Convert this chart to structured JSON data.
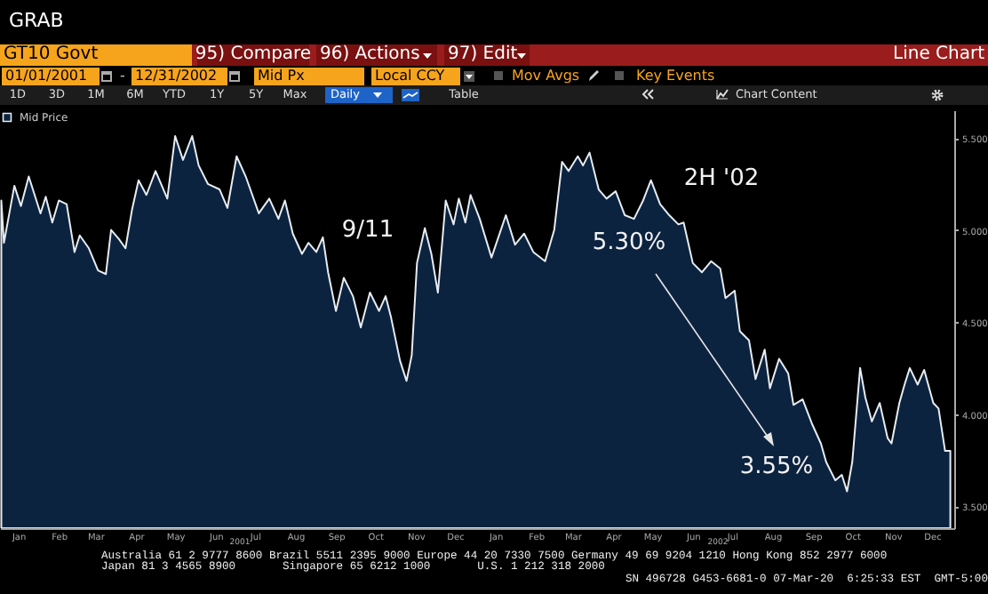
{
  "chart_data": [
    {
      "type": "other",
      "title": "GRAB",
      "annotations": [
        "GT10 Govt",
        "95) Compare",
        "96) Actions",
        "97) Edit",
        "Line Chart",
        "01/01/2001",
        "-",
        "12/31/2002",
        "Mid Px",
        "Local CCY",
        "Mov Avgs",
        "Key Events",
        "1D",
        "3D",
        "1M",
        "6M",
        "YTD",
        "1Y",
        "5Y",
        "Max",
        "Daily",
        "Table",
        "Chart Content"
      ]
    },
    {
      "type": "area",
      "legend": "top left",
      "xlim": [
        "2001-01-01",
        "2003-01-01"
      ],
      "ylim": [
        3.38,
        5.65
      ],
      "yticks": [
        {
          "value": 3.5,
          "label": "3.500"
        },
        {
          "value": 4,
          "label": "4.000"
        },
        {
          "value": 4.5,
          "label": "4.500"
        },
        {
          "value": 5,
          "label": "5.000"
        },
        {
          "value": 5.5,
          "label": "5.500"
        }
      ],
      "xticks": [
        {
          "value": "2001-01-15",
          "label": "Jan"
        },
        {
          "value": "2001-02-15",
          "label": "Feb"
        },
        {
          "value": "2001-03-15",
          "label": "Mar"
        },
        {
          "value": "2001-04-15",
          "label": "Apr"
        },
        {
          "value": "2001-05-15",
          "label": "May"
        },
        {
          "value": "2001-06-15",
          "label": "Jun"
        },
        {
          "value": "2001-07-15",
          "label": "Jul"
        },
        {
          "value": "2001-08-15",
          "label": "Aug"
        },
        {
          "value": "2001-09-15",
          "label": "Sep"
        },
        {
          "value": "2001-10-15",
          "label": "Oct"
        },
        {
          "value": "2001-11-15",
          "label": "Nov"
        },
        {
          "value": "2001-12-15",
          "label": "Dec"
        },
        {
          "value": "2002-01-15",
          "label": "Jan"
        },
        {
          "value": "2002-02-15",
          "label": "Feb"
        },
        {
          "value": "2002-03-15",
          "label": "Mar"
        },
        {
          "value": "2002-04-15",
          "label": "Apr"
        },
        {
          "value": "2002-05-15",
          "label": "May"
        },
        {
          "value": "2002-06-15",
          "label": "Jun"
        },
        {
          "value": "2002-07-15",
          "label": "Jul"
        },
        {
          "value": "2002-08-15",
          "label": "Aug"
        },
        {
          "value": "2002-09-15",
          "label": "Sep"
        },
        {
          "value": "2002-10-15",
          "label": "Oct"
        },
        {
          "value": "2002-11-15",
          "label": "Nov"
        },
        {
          "value": "2002-12-15",
          "label": "Dec"
        }
      ],
      "x": [
        "2001-01-02",
        "2001-01-04",
        "2001-01-12",
        "2001-01-17",
        "2001-01-23",
        "2001-02-01",
        "2001-02-05",
        "2001-02-10",
        "2001-02-15",
        "2001-02-21",
        "2001-02-27",
        "2001-03-03",
        "2001-03-10",
        "2001-03-17",
        "2001-03-23",
        "2001-03-27",
        "2001-04-02",
        "2001-04-07",
        "2001-04-12",
        "2001-04-17",
        "2001-04-23",
        "2001-04-30",
        "2001-05-09",
        "2001-05-15",
        "2001-05-21",
        "2001-05-28",
        "2001-06-02",
        "2001-06-09",
        "2001-06-18",
        "2001-06-24",
        "2001-07-01",
        "2001-07-08",
        "2001-07-18",
        "2001-07-26",
        "2001-08-02",
        "2001-08-07",
        "2001-08-13",
        "2001-08-20",
        "2001-08-25",
        "2001-08-31",
        "2001-09-05",
        "2001-09-09",
        "2001-09-15",
        "2001-09-21",
        "2001-09-28",
        "2001-10-04",
        "2001-10-11",
        "2001-10-18",
        "2001-10-23",
        "2001-10-27",
        "2001-11-03",
        "2001-11-08",
        "2001-11-12",
        "2001-11-16",
        "2001-11-22",
        "2001-11-27",
        "2001-12-02",
        "2001-12-08",
        "2001-12-14",
        "2001-12-18",
        "2001-12-23",
        "2001-12-27",
        "2002-01-03",
        "2002-01-12",
        "2002-01-23",
        "2002-01-30",
        "2002-02-06",
        "2002-02-13",
        "2002-02-22",
        "2002-03-01",
        "2002-03-07",
        "2002-03-12",
        "2002-03-19",
        "2002-03-23",
        "2002-03-28",
        "2002-04-04",
        "2002-04-10",
        "2002-04-17",
        "2002-04-24",
        "2002-05-01",
        "2002-05-08",
        "2002-05-14",
        "2002-05-21",
        "2002-05-28",
        "2002-06-04",
        "2002-06-08",
        "2002-06-15",
        "2002-06-22",
        "2002-06-29",
        "2002-07-06",
        "2002-07-10",
        "2002-07-17",
        "2002-07-21",
        "2002-07-28",
        "2002-08-02",
        "2002-08-09",
        "2002-08-13",
        "2002-08-20",
        "2002-08-27",
        "2002-08-31",
        "2002-09-07",
        "2002-09-14",
        "2002-09-21",
        "2002-09-25",
        "2002-10-02",
        "2002-10-07",
        "2002-10-11",
        "2002-10-15",
        "2002-10-21",
        "2002-10-25",
        "2002-10-30",
        "2002-11-05",
        "2002-11-11",
        "2002-11-14",
        "2002-11-20",
        "2002-11-24",
        "2002-11-28",
        "2002-12-04",
        "2002-12-09",
        "2002-12-16",
        "2002-12-20",
        "2002-12-25",
        "2002-12-29"
      ],
      "series": [
        {
          "name": "Mid Price",
          "color": "#0c2340",
          "values": [
            5.16,
            4.93,
            5.24,
            5.13,
            5.29,
            5.09,
            5.18,
            5.04,
            5.16,
            5.14,
            4.88,
            4.97,
            4.9,
            4.78,
            4.76,
            5.0,
            4.95,
            4.9,
            5.11,
            5.27,
            5.19,
            5.32,
            5.17,
            5.51,
            5.38,
            5.51,
            5.35,
            5.25,
            5.22,
            5.12,
            5.4,
            5.29,
            5.09,
            5.17,
            5.06,
            5.16,
            4.98,
            4.87,
            4.93,
            4.88,
            4.96,
            4.77,
            4.56,
            4.74,
            4.64,
            4.47,
            4.66,
            4.56,
            4.64,
            4.53,
            4.29,
            4.18,
            4.32,
            4.82,
            5.01,
            4.87,
            4.66,
            5.16,
            5.03,
            5.17,
            5.04,
            5.19,
            5.06,
            4.85,
            5.08,
            4.92,
            4.98,
            4.88,
            4.83,
            5.0,
            5.37,
            5.32,
            5.4,
            5.35,
            5.42,
            5.22,
            5.17,
            5.21,
            5.08,
            5.06,
            5.16,
            5.27,
            5.14,
            5.08,
            5.03,
            5.04,
            4.82,
            4.77,
            4.83,
            4.79,
            4.63,
            4.67,
            4.45,
            4.4,
            4.19,
            4.35,
            4.14,
            4.3,
            4.22,
            4.05,
            4.08,
            3.95,
            3.84,
            3.74,
            3.64,
            3.67,
            3.58,
            3.74,
            4.25,
            4.09,
            3.96,
            4.06,
            3.87,
            3.84,
            4.06,
            4.16,
            4.25,
            4.16,
            4.24,
            4.06,
            4.03,
            3.8,
            3.8
          ]
        }
      ],
      "annotations": [
        "9/11",
        "2H '02",
        "5.30%",
        "3.55%",
        "2001",
        "2002"
      ]
    },
    {
      "type": "other",
      "annotations": [
        "Australia 61 2 9777 8600 Brazil 5511 2395 9000 Europe 44 20 7330 7500 Germany 49 69 9204 1210 Hong Kong 852 2977 6000",
        "Japan 81 3 4565 8900       Singapore 65 6212 1000       U.S. 1 212 318 2000",
        "SN 496728 G453-6681-0 07-Mar-20  6:25:33 EST  GMT-5:00"
      ]
    }
  ]
}
